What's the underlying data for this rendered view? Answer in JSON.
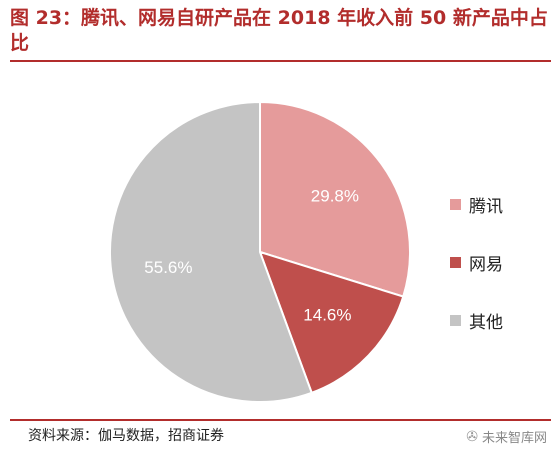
{
  "title": "图 23：腾讯、网易自研产品在 2018 年收入前 50 新产品中占比",
  "source": "资料来源：伽马数据，招商证券",
  "watermark": "未来智库网",
  "watermark_icon": "wechat-icon",
  "chart_data": {
    "type": "pie",
    "title": "图 23：腾讯、网易自研产品在 2018 年收入前 50 新产品中占比",
    "slices": [
      {
        "label": "腾讯",
        "value": 29.8,
        "display": "29.8%",
        "color": "#e59b9b"
      },
      {
        "label": "网易",
        "value": 14.6,
        "display": "14.6%",
        "color": "#bf4f4c"
      },
      {
        "label": "其他",
        "value": 55.6,
        "display": "55.6%",
        "color": "#c4c4c4"
      }
    ],
    "legend_position": "right"
  }
}
